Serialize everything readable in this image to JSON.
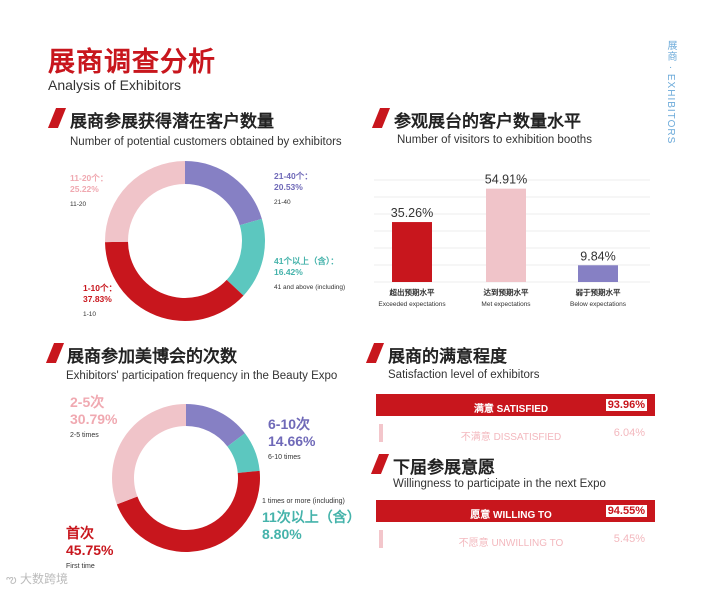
{
  "header": {
    "title": "展商调查分析",
    "subtitle": "Analysis of Exhibitors",
    "side_tag": "展商 · EXHIBITORS"
  },
  "watermark": "大数跨境",
  "colors": {
    "red": "#c8161d",
    "pink": "#f0c4c9",
    "purple": "#8680c4",
    "teal": "#5cc7bf",
    "light_red_text": "#f3b8be"
  },
  "sections": {
    "potential_customers": {
      "title": "展商参展获得潜在客户数量",
      "subtitle": "Number of potential customers obtained by exhibitors"
    },
    "visitors": {
      "title": "参观展台的客户数量水平",
      "subtitle": "Number of visitors to exhibition booths"
    },
    "frequency": {
      "title": "展商参加美博会的次数",
      "subtitle": "Exhibitors' participation frequency in the Beauty Expo"
    },
    "satisfaction": {
      "title": "展商的满意程度",
      "subtitle": "Satisfaction level of exhibitors"
    },
    "willingness": {
      "title": "下届参展意愿",
      "subtitle": "Willingness to participate in the next Expo"
    }
  },
  "chart_data": [
    {
      "type": "pie",
      "title": "展商参展获得潜在客户数量",
      "subtitle": "Number of potential customers obtained by exhibitors",
      "slices": [
        {
          "label_cn": "21-40个：",
          "label_value": "20.53%",
          "label_en": "21-40",
          "value": 20.53,
          "color": "#8680c4"
        },
        {
          "label_cn": "41个以上（含）：",
          "label_value": "16.42%",
          "label_en": "41 and above (including)",
          "value": 16.42,
          "color": "#5cc7bf"
        },
        {
          "label_cn": "1-10个：",
          "label_value": "37.83%",
          "label_en": "1-10",
          "value": 37.83,
          "color": "#c8161d"
        },
        {
          "label_cn": "11-20个：",
          "label_value": "25.22%",
          "label_en": "11-20",
          "value": 25.22,
          "color": "#f0c4c9"
        }
      ]
    },
    {
      "type": "bar",
      "title": "参观展台的客户数量水平",
      "subtitle": "Number of visitors to exhibition booths",
      "categories": [
        "超出预期水平",
        "达到预期水平",
        "弱于预期水平"
      ],
      "categories_en": [
        "Exceeded expectations",
        "Met expectations",
        "Below expectations"
      ],
      "values": [
        35.26,
        54.91,
        9.84
      ],
      "value_labels": [
        "35.26%",
        "54.91%",
        "9.84%"
      ],
      "colors": [
        "#c8161d",
        "#f0c4c9",
        "#8680c4"
      ],
      "ylim": [
        0,
        60
      ]
    },
    {
      "type": "pie",
      "title": "展商参加美博会的次数",
      "subtitle": "Exhibitors' participation frequency in the Beauty Expo",
      "slices": [
        {
          "label_cn": "6-10次",
          "label_value": "14.66%",
          "label_en": "6-10 times",
          "value": 14.66,
          "color": "#8680c4"
        },
        {
          "label_cn": "11次以上（含）",
          "label_value": "8.80%",
          "label_en": "1 times or more (including)",
          "value": 8.8,
          "color": "#5cc7bf"
        },
        {
          "label_cn": "首次",
          "label_value": "45.75%",
          "label_en": "First time",
          "value": 45.75,
          "color": "#c8161d"
        },
        {
          "label_cn": "2-5次",
          "label_value": "30.79%",
          "label_en": "2-5 times",
          "value": 30.79,
          "color": "#f0c4c9"
        }
      ]
    },
    {
      "type": "bar",
      "title": "展商的满意程度",
      "subtitle": "Satisfaction level of exhibitors",
      "categories": [
        "满意 SATISFIED",
        "不满意 DISSATISFIED"
      ],
      "values": [
        93.96,
        6.04
      ],
      "value_labels": [
        "93.96%",
        "6.04%"
      ]
    },
    {
      "type": "bar",
      "title": "下届参展意愿",
      "subtitle": "Willingness to participate in the next Expo",
      "categories": [
        "愿意 WILLING TO",
        "不愿意 UNWILLING TO"
      ],
      "values": [
        94.55,
        5.45
      ],
      "value_labels": [
        "94.55%",
        "5.45%"
      ]
    }
  ]
}
